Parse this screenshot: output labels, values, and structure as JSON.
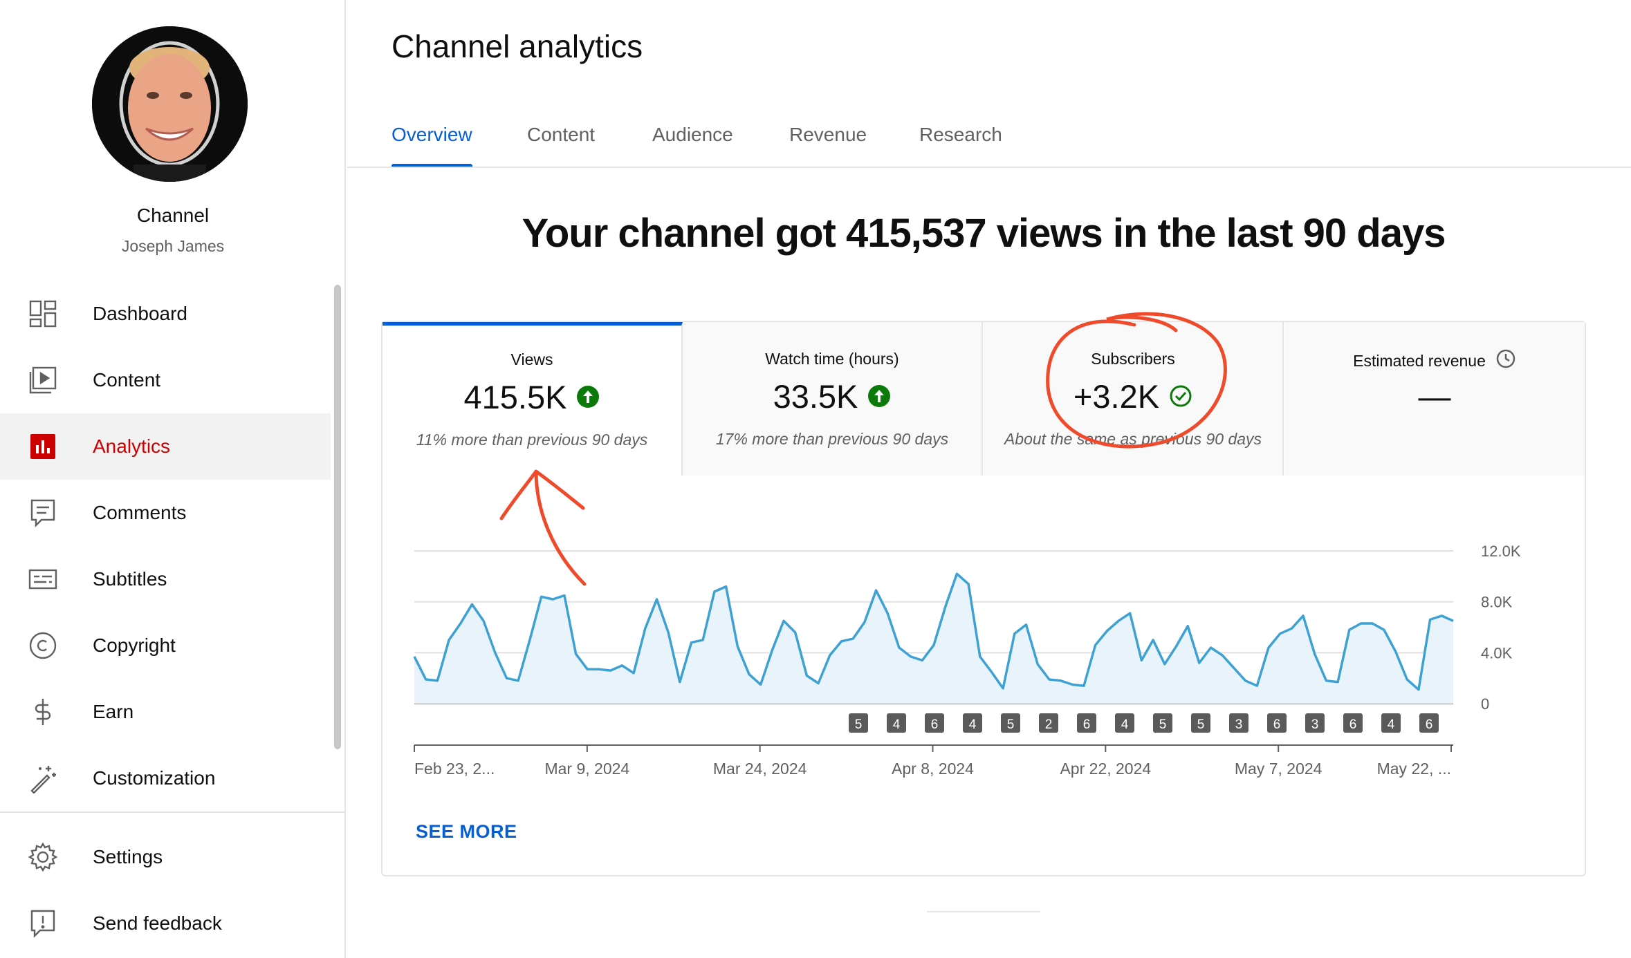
{
  "sidebar": {
    "channel_label": "Channel",
    "channel_name": "Joseph James",
    "items": [
      {
        "label": "Dashboard",
        "icon": "dashboard-icon"
      },
      {
        "label": "Content",
        "icon": "content-icon"
      },
      {
        "label": "Analytics",
        "icon": "analytics-icon",
        "active": true
      },
      {
        "label": "Comments",
        "icon": "comments-icon"
      },
      {
        "label": "Subtitles",
        "icon": "subtitles-icon"
      },
      {
        "label": "Copyright",
        "icon": "copyright-icon"
      },
      {
        "label": "Earn",
        "icon": "dollar-icon"
      },
      {
        "label": "Customization",
        "icon": "magic-wand-icon"
      }
    ],
    "footer_items": [
      {
        "label": "Settings",
        "icon": "gear-icon"
      },
      {
        "label": "Send feedback",
        "icon": "feedback-icon"
      }
    ]
  },
  "header": {
    "title": "Channel analytics",
    "tabs": [
      "Overview",
      "Content",
      "Audience",
      "Revenue",
      "Research"
    ],
    "active_tab": "Overview"
  },
  "headline": "Your channel got 415,537 views in the last 90 days",
  "metrics": [
    {
      "label": "Views",
      "value": "415.5K",
      "note": "11% more than previous 90 days",
      "status": "up-arrow-icon"
    },
    {
      "label": "Watch time (hours)",
      "value": "33.5K",
      "note": "17% more than previous 90 days",
      "status": "up-arrow-icon"
    },
    {
      "label": "Subscribers",
      "value": "+3.2K",
      "note": "About the same as previous 90 days",
      "status": "check-circle-icon"
    },
    {
      "label": "Estimated revenue",
      "value": "—",
      "note": "",
      "status": "clock-icon"
    }
  ],
  "see_more": "SEE MORE",
  "colors": {
    "accent": "#065fd4",
    "active_nav": "#cc0000",
    "positive": "#0b7a0b",
    "line": "#3ea1d4",
    "annotation": "#ef4a2b"
  },
  "chart_data": {
    "type": "area",
    "title": "",
    "ylabel": "",
    "xlabel": "",
    "ylim": [
      0,
      12000
    ],
    "y_ticks": [
      "12.0K",
      "8.0K",
      "4.0K",
      "0"
    ],
    "x_tick_labels": [
      "Feb 23, 2...",
      "Mar 9, 2024",
      "Mar 24, 2024",
      "Apr 8, 2024",
      "Apr 22, 2024",
      "May 7, 2024",
      "May 22, ..."
    ],
    "series": [
      {
        "values": [
          3700,
          1900,
          1800,
          5000,
          6300,
          7800,
          6500,
          4000,
          2000,
          1800,
          5000,
          8400,
          8200,
          8500,
          3900,
          2700,
          2700,
          2600,
          3000,
          2400,
          5900,
          8200,
          5600,
          1700,
          4800,
          5000,
          8800,
          9200,
          4500,
          2300,
          1500,
          4200,
          6500,
          5600,
          2200,
          1600,
          3800,
          4900,
          5100,
          6400,
          8900,
          7100,
          4400,
          3700,
          3400,
          4600,
          7600,
          10200,
          9400,
          3700,
          2500,
          1200,
          5500,
          6200,
          3100,
          1900,
          1800,
          1500,
          1400,
          4600,
          5700,
          6500,
          7100,
          3400,
          5000,
          3100,
          4500,
          6100,
          3200,
          4400,
          3800,
          2800,
          1800,
          1400,
          4400,
          5500,
          5900,
          6900,
          3900,
          1800,
          1700,
          5800,
          6300,
          6300,
          5800,
          4100,
          1900,
          1100,
          6600,
          6900,
          6500
        ]
      }
    ],
    "video_markers": [
      "5",
      "4",
      "6",
      "4",
      "5",
      "2",
      "6",
      "4",
      "5",
      "5",
      "3",
      "6",
      "3",
      "6",
      "4",
      "6"
    ],
    "grid": true
  }
}
